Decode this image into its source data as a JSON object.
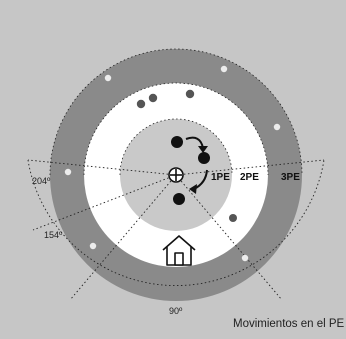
{
  "diagram": {
    "caption": "Movimientos en el PE",
    "zones": [
      "1PE",
      "2PE",
      "3PE"
    ],
    "angles": {
      "left_upper": "204º",
      "left_lower": "154º",
      "bottom": "90º"
    },
    "icons": {
      "home": "house-icon",
      "center": "crosshair-icon",
      "arrows": "curved-arrow-icon"
    },
    "colors": {
      "background": "#c6c6c6",
      "outer_ring": "#8a8a8a",
      "white_ring": "#ffffff",
      "inner_disc": "#c9c9c9",
      "dot": "#111111",
      "pale_dot": "#ececec",
      "mid_dot": "#555555"
    }
  }
}
